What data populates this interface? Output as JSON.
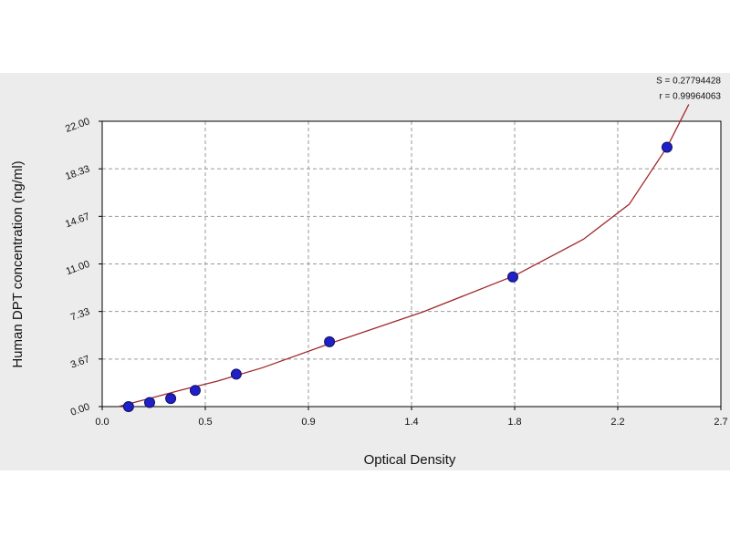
{
  "chart_data": {
    "type": "scatter",
    "x_label": "Optical Density",
    "y_label": "Human DPT concentration (ng/ml)",
    "annotations": [
      "S = 0.27794428",
      "r = 0.99964063"
    ],
    "xlim": [
      0,
      2.7
    ],
    "ylim": [
      0,
      22
    ],
    "xticks": [
      {
        "value": 0,
        "label": "0.0"
      },
      {
        "value": 0.45,
        "label": "0.5"
      },
      0.9,
      {
        "value": 1.35,
        "label": "1.4"
      },
      1.8,
      {
        "value": 2.25,
        "label": "2.2"
      },
      2.7
    ],
    "yticks": [
      {
        "value": 0,
        "label": "0.00"
      },
      {
        "value": 3.667,
        "label": "3.67"
      },
      {
        "value": 7.333,
        "label": "7.33"
      },
      {
        "value": 11,
        "label": "11.00"
      },
      {
        "value": 14.667,
        "label": "14.67"
      },
      {
        "value": 18.333,
        "label": "18.33"
      },
      {
        "value": 22,
        "label": "22.00"
      }
    ],
    "grid": true,
    "series": [
      {
        "mode": "markers",
        "color": "#2020c8",
        "x": [
          0.115,
          0.207,
          0.299,
          0.406,
          0.585,
          0.992,
          1.792,
          2.465
        ],
        "values": [
          0,
          0.3125,
          0.625,
          1.25,
          2.5,
          5,
          10,
          20
        ]
      },
      {
        "mode": "line",
        "color": "#a0282c",
        "x": [
          0.07,
          0.2,
          0.35,
          0.5,
          0.7,
          1.0,
          1.4,
          1.8,
          2.1,
          2.3,
          2.465,
          2.56
        ],
        "values": [
          0,
          0.6,
          1.3,
          1.95,
          3.0,
          4.9,
          7.3,
          10.1,
          12.9,
          15.6,
          20,
          23.3
        ]
      }
    ]
  }
}
